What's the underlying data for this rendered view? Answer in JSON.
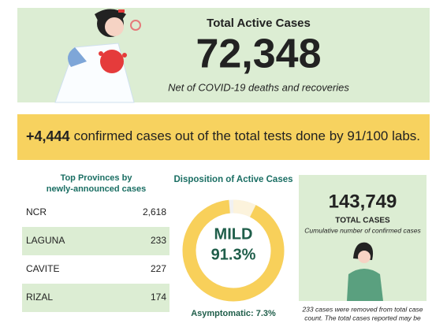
{
  "header": {
    "title": "Total Active Cases",
    "value": "72,348",
    "subtitle": "Net of COVID-19 deaths and recoveries"
  },
  "banner": {
    "highlight": "+4,444",
    "text": "confirmed cases out of the total tests done by 91/100 labs."
  },
  "provinces": {
    "title_lines": [
      "Top Provinces by",
      "newly-announced cases"
    ],
    "rows": [
      [
        "NCR",
        "2,618"
      ],
      [
        "LAGUNA",
        "233"
      ],
      [
        "CAVITE",
        "227"
      ],
      [
        "RIZAL",
        "174"
      ]
    ]
  },
  "chart_data": {
    "type": "donut",
    "title": "Disposition of Active Cases",
    "center_name": "MILD",
    "segments": [
      {
        "name": "Asymptomatic",
        "value": 7.3,
        "color": "#fcf3dc",
        "legend_label": "Asymptomatic: 7.3%"
      },
      {
        "name": "Mild",
        "value": 91.3,
        "color": "#f8d05a",
        "value_label": "91.3%"
      }
    ]
  },
  "total": {
    "value": "143,749",
    "label": "TOTAL CASES",
    "caption": "Cumulative number of confirmed cases",
    "note_lines": [
      "233 cases were removed from total case",
      "count. The total cases reported may be"
    ]
  }
}
